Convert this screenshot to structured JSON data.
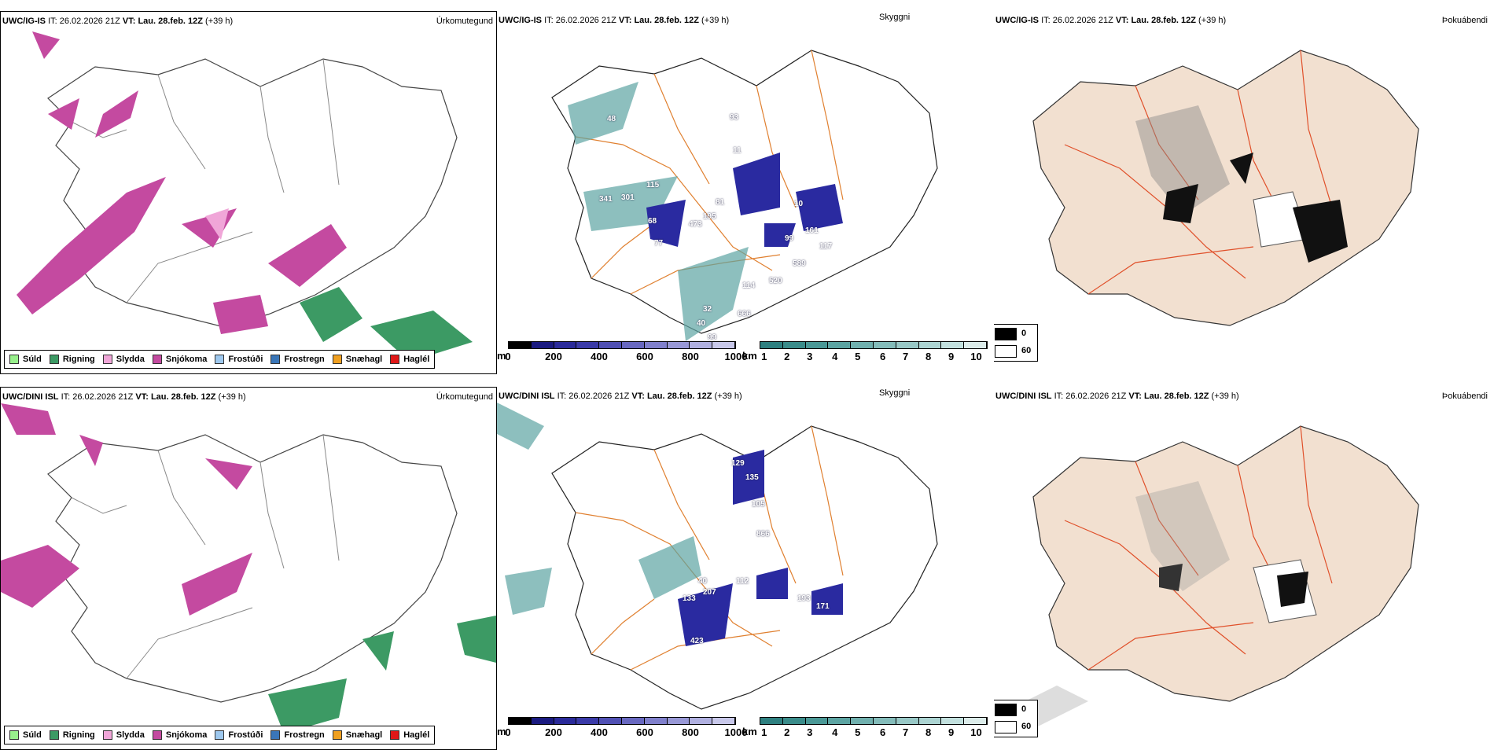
{
  "rows": [
    {
      "model_label": "UWC/IG-IS",
      "it_label": "IT:",
      "it_value": "26.02.2026 21Z",
      "vt_label": "VT:",
      "vt_value": "Lau. 28.feb. 12Z",
      "lead": "(+39 h)"
    },
    {
      "model_label": "UWC/DINI ISL",
      "it_label": "IT:",
      "it_value": "26.02.2026 21Z",
      "vt_label": "VT:",
      "vt_value": "Lau. 28.feb. 12Z",
      "lead": "(+39 h)"
    }
  ],
  "panel_titles": {
    "precip": "Úrkomutegund",
    "cloud": "Skyggni",
    "fog": "Þokuábendi"
  },
  "precip_legend": [
    {
      "label": "Súld",
      "color": "#98f08c"
    },
    {
      "label": "Rigning",
      "color": "#3c9a64"
    },
    {
      "label": "Slydda",
      "color": "#f0a6d8"
    },
    {
      "label": "Snjókoma",
      "color": "#c44aa0"
    },
    {
      "label": "Frostúði",
      "color": "#9ec8ee"
    },
    {
      "label": "Frostregn",
      "color": "#3a76b8"
    },
    {
      "label": "Snæhagl",
      "color": "#f0a020"
    },
    {
      "label": "Haglél",
      "color": "#e01818"
    }
  ],
  "ceiling_bar": {
    "unit": "m",
    "ticks": [
      "0",
      "200",
      "400",
      "600",
      "800",
      "1000"
    ],
    "colors": [
      "#000000",
      "#1a1a80",
      "#2a2a9a",
      "#3a3aa8",
      "#5050b4",
      "#6868c0",
      "#8080cc",
      "#9898d6",
      "#b0b0e0",
      "#c8c8ea"
    ]
  },
  "visibility_bar": {
    "unit": "km",
    "ticks": [
      "1",
      "2",
      "3",
      "4",
      "5",
      "6",
      "7",
      "8",
      "9",
      "10"
    ],
    "colors": [
      "#2e8080",
      "#3a8c8a",
      "#4a9896",
      "#5ca4a2",
      "#70b0ae",
      "#84bcba",
      "#98c8c6",
      "#acd4d2",
      "#c2e0de",
      "#dcecea"
    ]
  },
  "fog_legend": {
    "top_value": "0",
    "bottom_value": "60"
  },
  "top_cloud_labels": [
    "48",
    "93",
    "11",
    "115",
    "341",
    "301",
    "81",
    "10",
    "68",
    "473",
    "195",
    "99",
    "161",
    "117",
    "77",
    "589",
    "520",
    "114",
    "32",
    "666",
    "40",
    "99"
  ],
  "bottom_cloud_labels": [
    "129",
    "135",
    "105",
    "866",
    "40",
    "112",
    "207",
    "133",
    "193",
    "171",
    "423"
  ],
  "colors": {
    "snow": "#c44aa0",
    "sleet": "#f0a6d8",
    "rain": "#3c9a64",
    "cloud_low": "#2a2aa0",
    "vis": "#5ca4a2",
    "roads": "#e08030",
    "land": "#f2e0d0"
  }
}
